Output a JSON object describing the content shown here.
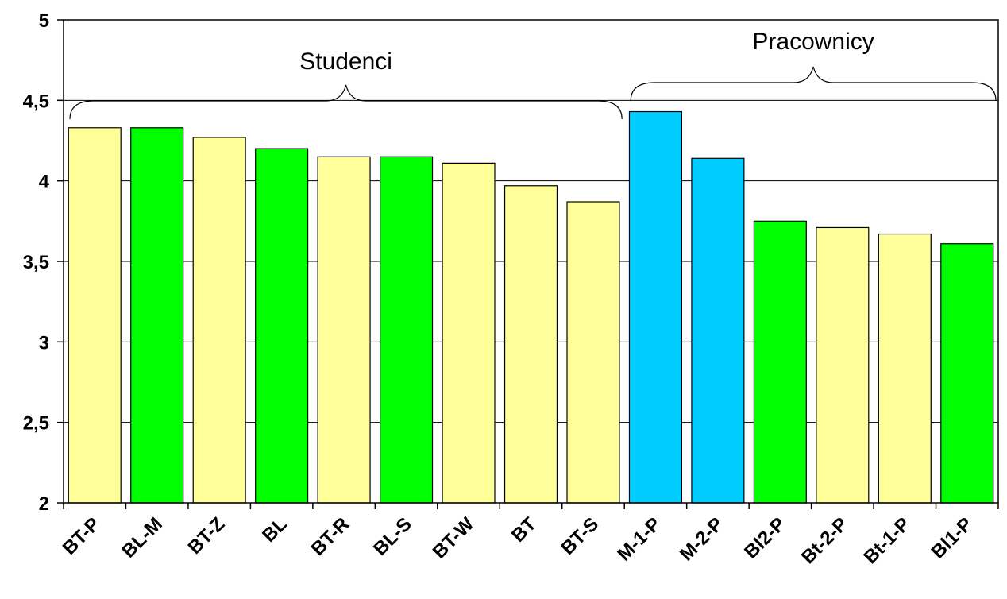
{
  "chart_data": {
    "type": "bar",
    "categories": [
      "BT-P",
      "BL-M",
      "BT-Z",
      "BL",
      "BT-R",
      "BL-S",
      "BT-W",
      "BT",
      "BT-S",
      "M-1-P",
      "M-2-P",
      "Bl2-P",
      "Bt-2-P",
      "Bt-1-P",
      "Bl1-P"
    ],
    "values": [
      4.33,
      4.33,
      4.27,
      4.2,
      4.15,
      4.15,
      4.11,
      3.97,
      3.87,
      4.43,
      4.14,
      3.75,
      3.71,
      3.67,
      3.61
    ],
    "bar_colors": [
      "#ffff99",
      "#00ff00",
      "#ffff99",
      "#00ff00",
      "#ffff99",
      "#00ff00",
      "#ffff99",
      "#ffff99",
      "#ffff99",
      "#00ccff",
      "#00ccff",
      "#00ff00",
      "#ffff99",
      "#ffff99",
      "#00ff00"
    ],
    "ylim": [
      2,
      5
    ],
    "yticks": [
      "2",
      "2,5",
      "3",
      "3,5",
      "4",
      "4,5",
      "5"
    ],
    "grid": true,
    "title": "",
    "xlabel": "",
    "ylabel": "",
    "groups": [
      {
        "label": "Studenci",
        "from": 0,
        "to": 8
      },
      {
        "label": "Pracownicy",
        "from": 9,
        "to": 14
      }
    ]
  }
}
